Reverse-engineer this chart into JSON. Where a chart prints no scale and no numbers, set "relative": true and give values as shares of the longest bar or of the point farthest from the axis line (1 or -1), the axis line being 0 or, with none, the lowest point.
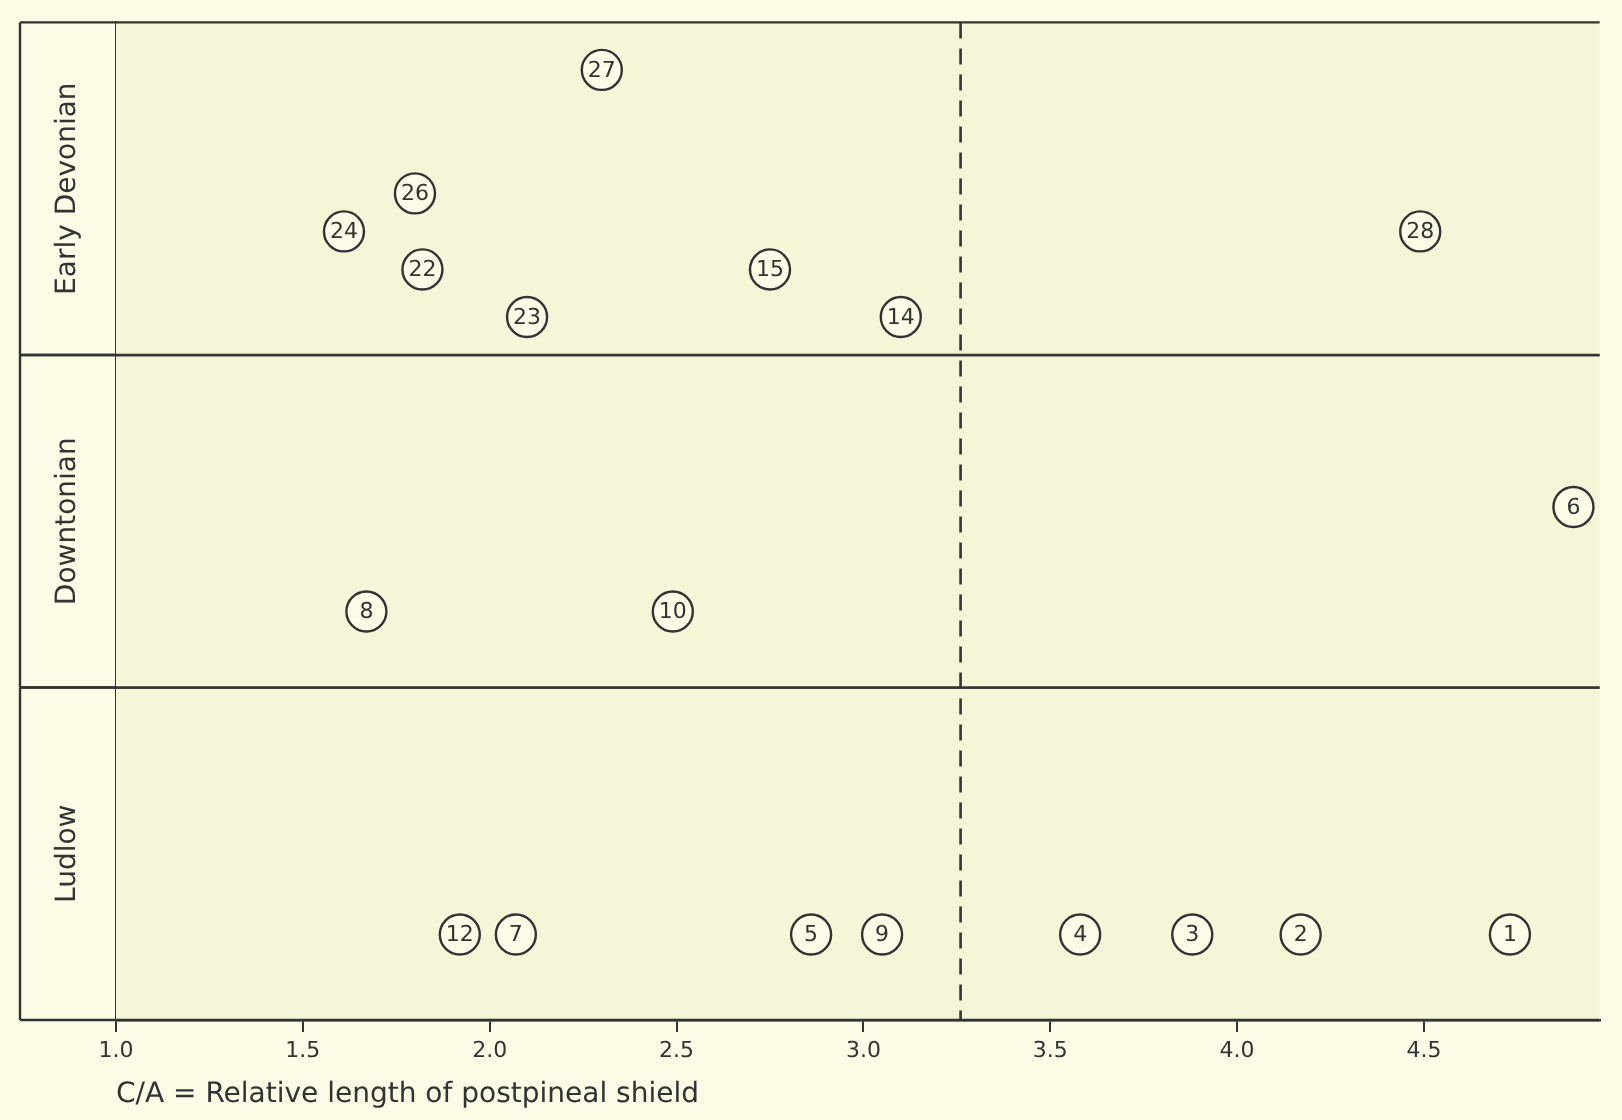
{
  "chart_data": {
    "type": "scatter",
    "xlabel": "C/A = Relative length of postpineal shield",
    "relative": true,
    "x": [
      2.3,
      1.8,
      1.61,
      1.82,
      2.75,
      2.1,
      3.1,
      4.49,
      4.9,
      1.67,
      2.49,
      1.92,
      2.07,
      2.86,
      3.05,
      3.58,
      3.88,
      4.17,
      4.73
    ],
    "series": [
      {
        "color": "#333333",
        "values": [
          1,
          0.87,
          0.83,
          0.79,
          0.79,
          0.74,
          0.74,
          0.83,
          0.54,
          0.43,
          0.43,
          0.09,
          0.09,
          0.09,
          0.09,
          0.09,
          0.09,
          0.09,
          0.09
        ]
      }
    ],
    "annotations": [
      {
        "text": "27",
        "x": 2.3,
        "y": 1
      },
      {
        "text": "26",
        "x": 1.8,
        "y": 0.87
      },
      {
        "text": "24",
        "x": 1.61,
        "y": 0.83
      },
      {
        "text": "22",
        "x": 1.82,
        "y": 0.79
      },
      {
        "text": "15",
        "x": 2.75,
        "y": 0.79
      },
      {
        "text": "23",
        "x": 2.1,
        "y": 0.74
      },
      {
        "text": "14",
        "x": 3.1,
        "y": 0.74
      },
      {
        "text": "28",
        "x": 4.49,
        "y": 0.83
      },
      {
        "text": "6",
        "x": 4.9,
        "y": 0.54
      },
      {
        "text": "8",
        "x": 1.67,
        "y": 0.43
      },
      {
        "text": "10",
        "x": 2.49,
        "y": 0.43
      },
      {
        "text": "12",
        "x": 1.92,
        "y": 0.09
      },
      {
        "text": "7",
        "x": 2.07,
        "y": 0.09
      },
      {
        "text": "5",
        "x": 2.86,
        "y": 0.09
      },
      {
        "text": "9",
        "x": 3.05,
        "y": 0.09
      },
      {
        "text": "4",
        "x": 3.58,
        "y": 0.09
      },
      {
        "text": "3",
        "x": 3.88,
        "y": 0.09
      },
      {
        "text": "2",
        "x": 4.17,
        "y": 0.09
      },
      {
        "text": "1",
        "x": 4.73,
        "y": 0.09
      }
    ],
    "xlim": [
      1.0,
      4.97
    ],
    "xticks": [
      {
        "value": 1,
        "label": "1.0"
      },
      1.5,
      {
        "value": 2,
        "label": "2.0"
      },
      2.5,
      {
        "value": 3,
        "label": "3.0"
      },
      3.5,
      {
        "value": 4,
        "label": "4.0"
      },
      4.5
    ],
    "bands": [
      {
        "axis": "y",
        "from": 0,
        "to": 0.35,
        "label": "Ludlow",
        "color": "#f5f5d8"
      },
      {
        "axis": "y",
        "from": 0.35,
        "to": 0.7,
        "label": "Downtonian",
        "color": "#f5f5d8"
      },
      {
        "axis": "y",
        "from": 0.7,
        "to": 1.05,
        "label": "Early Devonian",
        "color": "#f5f5d8"
      }
    ],
    "ref_lines": [
      {
        "axis": "x",
        "value": 3.26,
        "line_style": "dashed",
        "color": "#333333"
      }
    ],
    "marker": "circle"
  }
}
